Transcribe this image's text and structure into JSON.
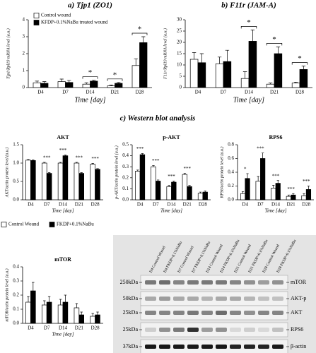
{
  "chart_data": [
    {
      "type": "bar",
      "title": "a) Tjp1 (ZO1)",
      "ylabel": "Tjp1/Rpl19 mRNA level (a.u.)",
      "xlabel": "Time [day]",
      "categories": [
        "D4",
        "D7",
        "D14",
        "D21",
        "D28"
      ],
      "ylim": [
        0,
        4
      ],
      "yticks": [
        0,
        1,
        2,
        3,
        4
      ],
      "legend": "upper left",
      "series": [
        {
          "name": "Control wound",
          "color": "#ffffff",
          "values": [
            0.28,
            0.35,
            0.2,
            0.1,
            1.3
          ],
          "errors": [
            0.1,
            0.15,
            0.08,
            0.05,
            0.4
          ]
        },
        {
          "name": "KFDP+0.1%NaBu  treated wound",
          "color": "#000000",
          "values": [
            0.25,
            0.3,
            0.38,
            0.25,
            2.65
          ],
          "errors": [
            0.1,
            0.12,
            0.05,
            0.05,
            0.35
          ]
        }
      ],
      "significance": [
        null,
        null,
        "*",
        "*",
        "*"
      ]
    },
    {
      "type": "bar",
      "title": "b) F11r (JAM-A)",
      "ylabel": "F11r/Rpl19 mRNA level (a.u.)",
      "xlabel": "Time [day]",
      "categories": [
        "D4",
        "D7",
        "D14",
        "D21",
        "D28"
      ],
      "ylim": [
        0,
        30
      ],
      "yticks": [
        0,
        5,
        10,
        15,
        20,
        25,
        30
      ],
      "series": [
        {
          "color": "#ffffff",
          "values": [
            12.5,
            10.5,
            4,
            1.5,
            2
          ],
          "errors": [
            3,
            3,
            3,
            0.5,
            0.4
          ]
        },
        {
          "color": "#000000",
          "values": [
            11,
            11.5,
            20.5,
            15,
            8
          ],
          "errors": [
            4,
            5,
            5,
            3,
            1.5
          ]
        }
      ],
      "significance": [
        null,
        null,
        "*",
        "*",
        "*"
      ]
    },
    {
      "type": "bar",
      "title": "AKT",
      "ylabel": "AKT/actin protein level (a.u.)",
      "xlabel": "Time [day]",
      "categories": [
        "D4",
        "D7",
        "D14",
        "D21",
        "D28"
      ],
      "ylim": [
        0,
        1.5
      ],
      "yticks": [
        {
          "value": 0,
          "label": "0.0"
        },
        0.5,
        {
          "value": 1,
          "label": "1.0"
        },
        1.5
      ],
      "legend": "bottom",
      "series": [
        {
          "name": "Control Wound",
          "color": "#ffffff",
          "values": [
            1.08,
            1.0,
            1.0,
            1.0,
            0.97
          ],
          "errors": [
            0.02,
            0.02,
            0.02,
            0.02,
            0.02
          ]
        },
        {
          "name": "FKDP+0.1%NaBu",
          "color": "#000000",
          "values": [
            1.07,
            0.72,
            1.2,
            0.72,
            0.83
          ],
          "errors": [
            0.02,
            0.02,
            0.02,
            0.02,
            0.02
          ]
        }
      ],
      "significance": [
        null,
        "***",
        "***",
        "***",
        "***"
      ]
    },
    {
      "type": "bar",
      "title": "p-AKT",
      "ylabel": "p-AKT/actin protein level (a.u.)",
      "xlabel": "Time [day]",
      "categories": [
        "D4",
        "D7",
        "D14",
        "D21",
        "D28"
      ],
      "ylim": [
        0,
        0.5
      ],
      "yticks": [
        {
          "value": 0,
          "label": "0.0"
        },
        0.1,
        0.2,
        0.3,
        0.4,
        0.5
      ],
      "series": [
        {
          "color": "#ffffff",
          "values": [
            0.26,
            0.3,
            0.12,
            0.23,
            0.06
          ],
          "errors": [
            0.01,
            0.01,
            0.01,
            0.01,
            0.01
          ]
        },
        {
          "color": "#000000",
          "values": [
            0.41,
            0.17,
            0.16,
            0.12,
            0.07
          ],
          "errors": [
            0.01,
            0.01,
            0.01,
            0.01,
            0.01
          ]
        }
      ],
      "significance": [
        "***",
        "***",
        "***",
        "***",
        null
      ]
    },
    {
      "type": "bar",
      "title": "RPS6",
      "ylabel": "RPS6/actin protein level (a.u.)",
      "xlabel": "Time [day]",
      "categories": [
        "D4",
        "D7",
        "D14",
        "D21",
        "D28"
      ],
      "ylim": [
        0,
        0.8
      ],
      "yticks": [
        {
          "value": 0,
          "label": "0.0"
        },
        0.2,
        0.4,
        0.6,
        0.8
      ],
      "series": [
        {
          "color": "#ffffff",
          "values": [
            0.09,
            0.27,
            0.17,
            0.05,
            0.06
          ],
          "errors": [
            0.03,
            0.07,
            0.04,
            0.02,
            0.03
          ]
        },
        {
          "color": "#000000",
          "values": [
            0.31,
            0.6,
            0.24,
            0.07,
            0.15
          ],
          "errors": [
            0.07,
            0.08,
            0.04,
            0.02,
            0.05
          ]
        }
      ],
      "significance": [
        "*",
        "***",
        "***",
        "***",
        "***"
      ]
    },
    {
      "type": "bar",
      "title": "mTOR",
      "ylabel": "mTOR/actin protein level (a.u.)",
      "xlabel": "Time [day]",
      "categories": [
        "D4",
        "D7",
        "D14",
        "D21",
        "D28"
      ],
      "ylim": [
        0,
        0.4
      ],
      "yticks": [
        {
          "value": 0,
          "label": "0.0"
        },
        0.1,
        0.2,
        0.3,
        0.4
      ],
      "series": [
        {
          "color": "#ffffff",
          "values": [
            0.15,
            0.13,
            0.13,
            0.11,
            0.05
          ],
          "errors": [
            0.04,
            0.03,
            0.04,
            0.03,
            0.02
          ]
        },
        {
          "color": "#000000",
          "values": [
            0.23,
            0.15,
            0.15,
            0.06,
            0.06
          ],
          "errors": [
            0.06,
            0.04,
            0.05,
            0.02,
            0.02
          ]
        }
      ]
    }
  ],
  "section_title": "c) Western blot analysis",
  "western_blot": {
    "lanes": [
      "D4 Control Wound",
      "D4 FKDP+0.1%NaBu",
      "D7 Control Wound",
      "D7 FKDP+0.1%NaBu",
      "D14 Control Wound",
      "D14 FKDP+0.1%NaBu",
      "D21 Control Wound",
      "D21 FKDP+0.1%NaBu",
      "D28 Control Wound",
      "D28 FKDP+0.1%NaBu"
    ],
    "rows": [
      {
        "kda": "250kDa",
        "protein": "mTOR"
      },
      {
        "kda": "50kDa",
        "protein": "AKT-p"
      },
      {
        "kda": "25kDa",
        "protein": "AKT"
      },
      {
        "kda": "25kDa",
        "protein": "RPS6"
      },
      {
        "kda": "37kDa",
        "protein": "β-actin"
      }
    ]
  }
}
